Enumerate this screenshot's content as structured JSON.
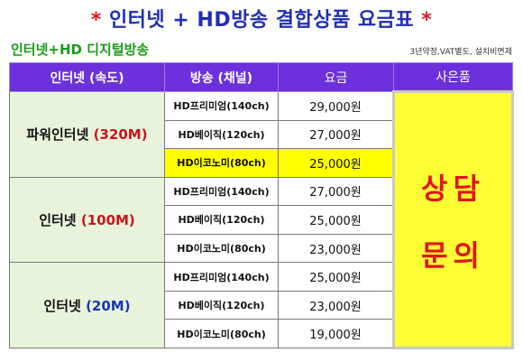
{
  "title": {
    "star_left": "*",
    "text": "인터넷 + HD방송 결합상품 요금표",
    "star_right": "*"
  },
  "subtitle": "인터넷+HD 디지털방송",
  "note": "3년약정,VAT별도, 설치비면제",
  "headers": {
    "speed": "인터넷 (속도)",
    "channel": "방송 (채널)",
    "price": "요금",
    "gift": "사은품"
  },
  "groups": [
    {
      "name": "파워인터넷",
      "speed": "(320M)",
      "rows": [
        {
          "channel": "HD프리미엄(140ch)",
          "price": "29,000원"
        },
        {
          "channel": "HD베이직(120ch)",
          "price": "27,000원"
        },
        {
          "channel": "HD이코노미(80ch)",
          "price": "25,000원"
        }
      ]
    },
    {
      "name": "인터넷",
      "speed": "(100M)",
      "rows": [
        {
          "channel": "HD프리미엄(140ch)",
          "price": "27,000원"
        },
        {
          "channel": "HD베이직(120ch)",
          "price": "25,000원"
        },
        {
          "channel": "HD이코노미(80ch)",
          "price": "23,000원"
        }
      ]
    },
    {
      "name": "인터넷",
      "speed": "(20M)",
      "rows": [
        {
          "channel": "HD프리미엄(140ch)",
          "price": "25,000원"
        },
        {
          "channel": "HD베이직(120ch)",
          "price": "23,000원"
        },
        {
          "channel": "HD이코노미(80ch)",
          "price": "19,000원"
        }
      ]
    }
  ],
  "gift": {
    "line1": "상담",
    "line2": "문의"
  },
  "colors": {
    "header_bg": "#6c30dc",
    "speed_bg": "#e8f3dc",
    "highlight": "#ffff00",
    "accent_red": "#e0141e",
    "title_blue": "#1f2fb4",
    "subtitle_green": "#1a9a1a"
  }
}
